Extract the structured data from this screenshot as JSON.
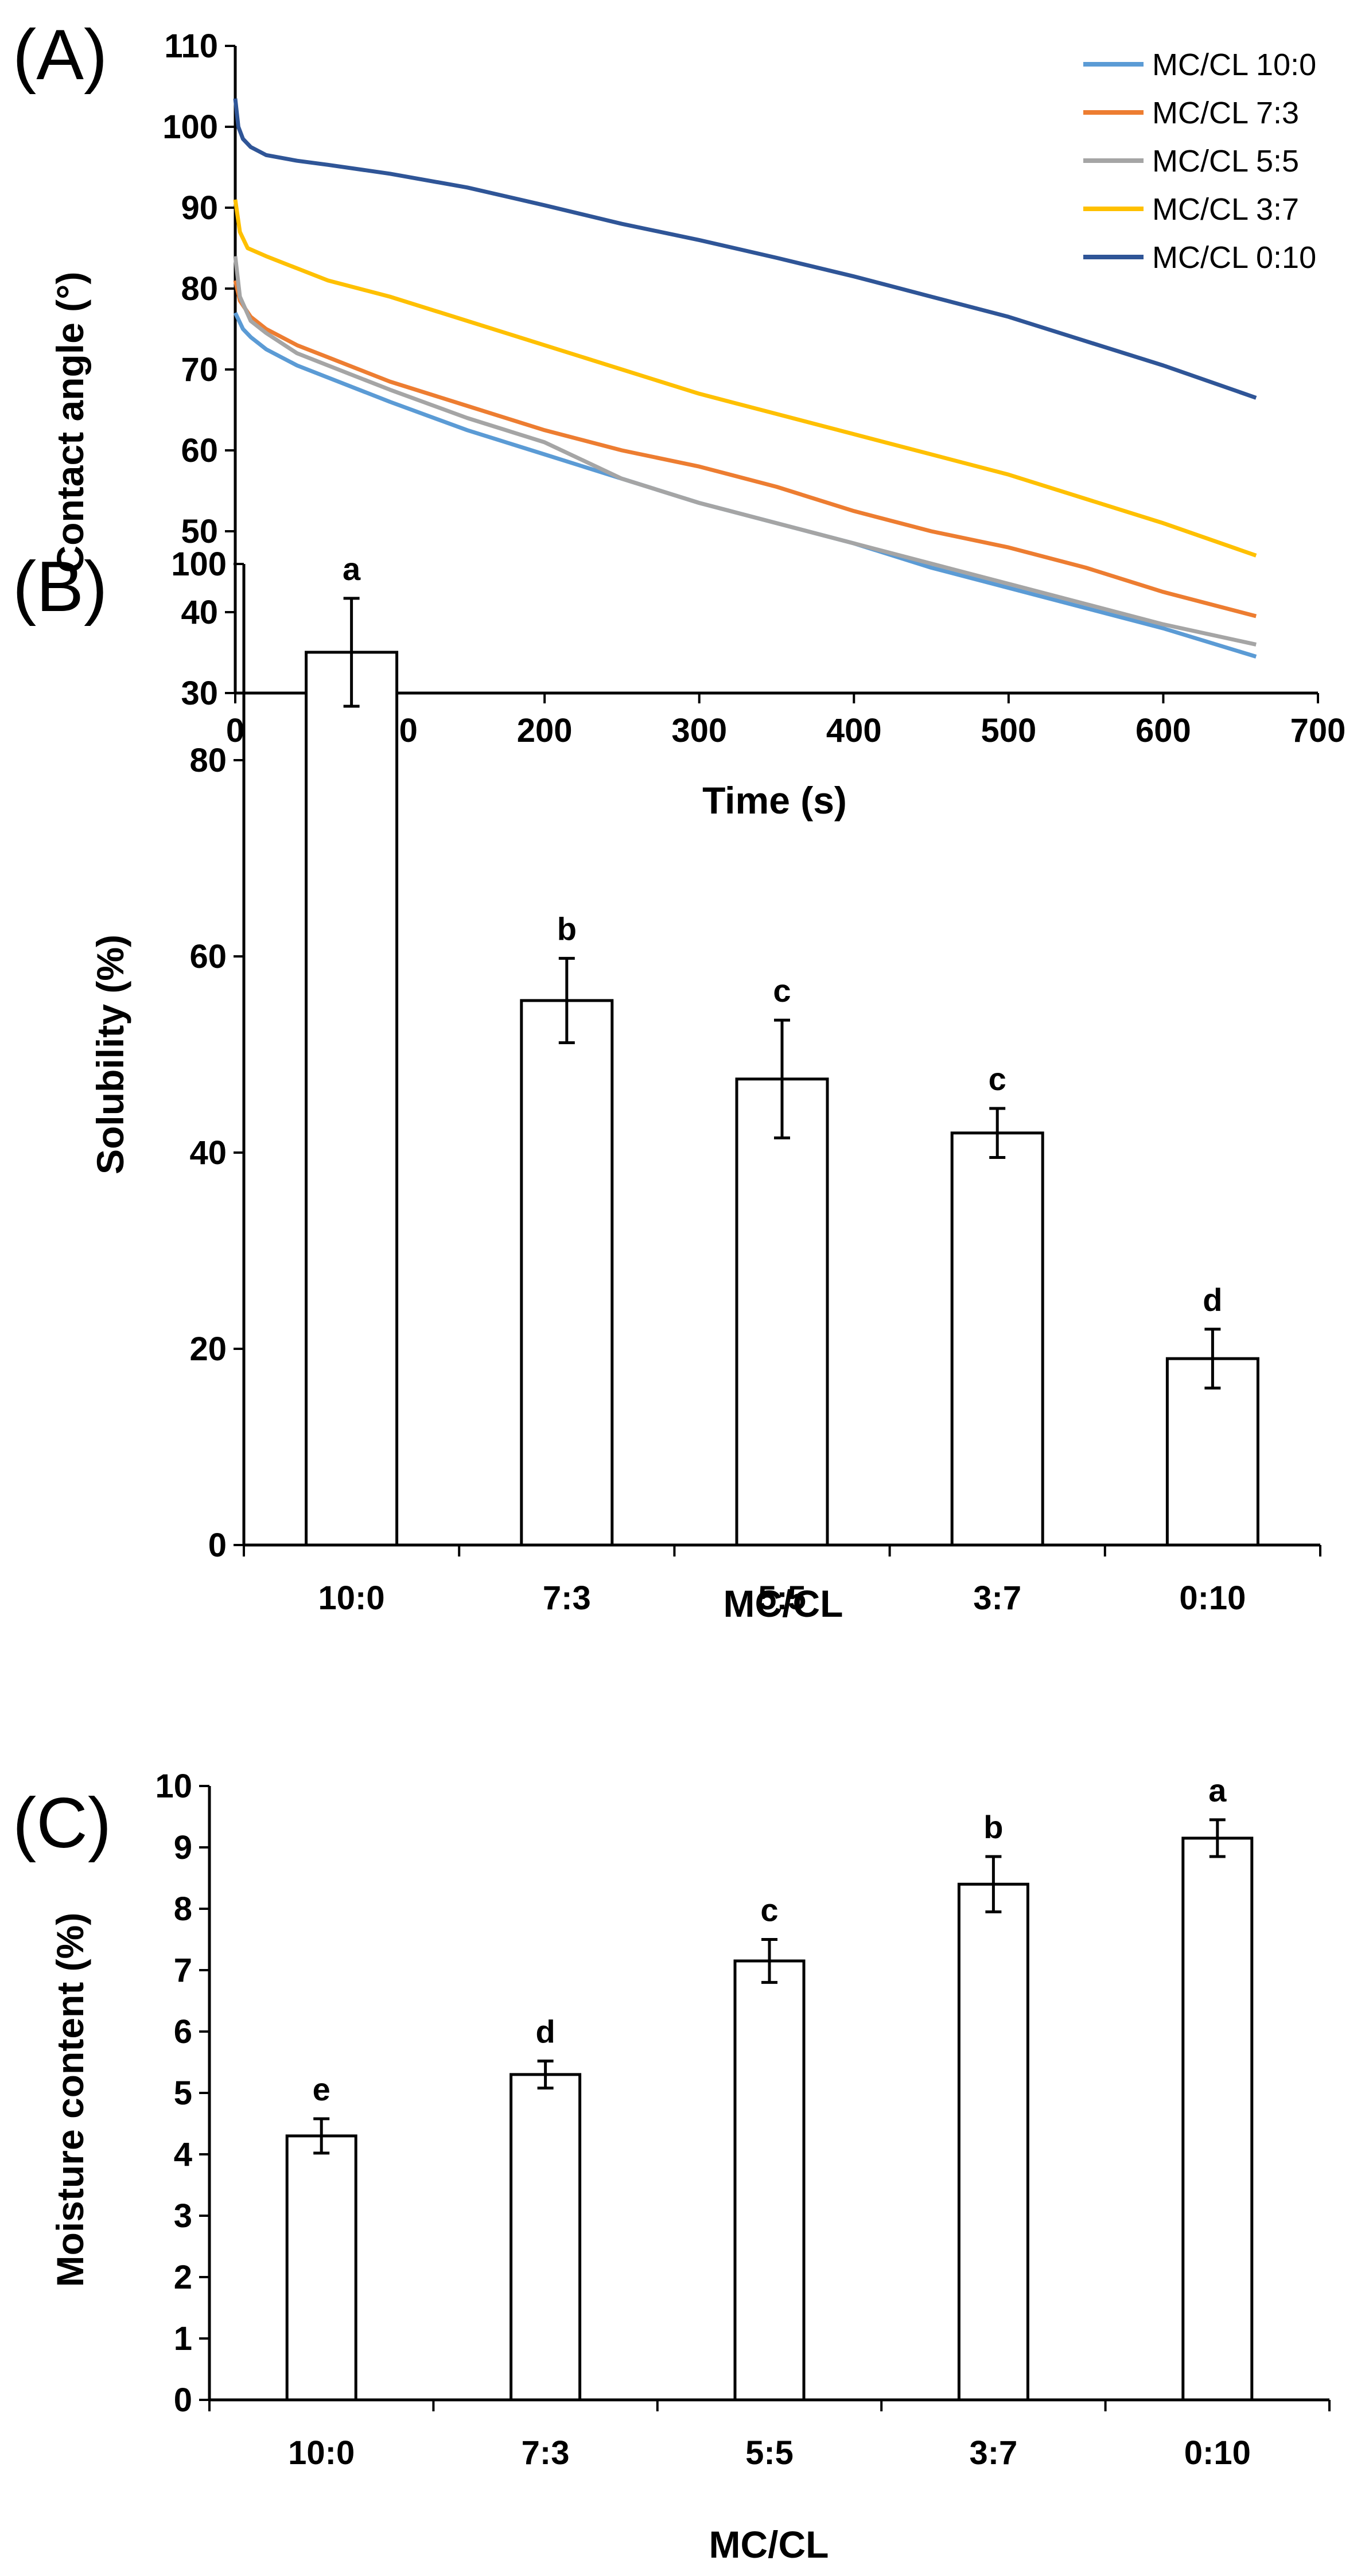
{
  "chart_data": [
    {
      "panel": "(A)",
      "type": "line",
      "xlabel": "Time (s)",
      "ylabel": "Contact angle (°)",
      "xlim": [
        0,
        700
      ],
      "ylim": [
        30,
        110
      ],
      "xticks": [
        0,
        100,
        200,
        300,
        400,
        500,
        600,
        700
      ],
      "yticks": [
        30,
        40,
        50,
        60,
        70,
        80,
        90,
        100,
        110
      ],
      "grid": false,
      "legend": "top-right",
      "series": [
        {
          "name": "MC/CL 10:0",
          "color": "#5B9BD5",
          "x": [
            0,
            5,
            10,
            20,
            40,
            60,
            100,
            150,
            200,
            250,
            300,
            350,
            400,
            450,
            500,
            550,
            600,
            660
          ],
          "y": [
            77,
            75,
            74,
            72.5,
            70.5,
            69,
            66,
            62.5,
            59.5,
            56.5,
            53.5,
            51,
            48.5,
            45.5,
            43,
            40.5,
            38,
            34.5
          ]
        },
        {
          "name": "MC/CL 7:3",
          "color": "#ED7D31",
          "x": [
            0,
            3,
            10,
            20,
            40,
            60,
            100,
            150,
            200,
            250,
            300,
            350,
            400,
            450,
            500,
            550,
            600,
            660
          ],
          "y": [
            81,
            78.5,
            76.5,
            75,
            73,
            71.5,
            68.5,
            65.5,
            62.5,
            60,
            58,
            55.5,
            52.5,
            50,
            48,
            45.5,
            42.5,
            39.5
          ]
        },
        {
          "name": "MC/CL 5:5",
          "color": "#A5A5A5",
          "x": [
            0,
            3,
            10,
            20,
            40,
            60,
            100,
            150,
            200,
            250,
            300,
            350,
            400,
            450,
            500,
            550,
            600,
            660
          ],
          "y": [
            84,
            79,
            76,
            74.5,
            72,
            70.5,
            67.5,
            64,
            61,
            56.5,
            53.5,
            51,
            48.5,
            46,
            43.5,
            41,
            38.5,
            36
          ]
        },
        {
          "name": "MC/CL 3:7",
          "color": "#FFC000",
          "x": [
            0,
            3,
            8,
            20,
            40,
            60,
            100,
            150,
            200,
            250,
            300,
            350,
            400,
            450,
            500,
            550,
            600,
            660
          ],
          "y": [
            91,
            87,
            85,
            84,
            82.5,
            81,
            79,
            76,
            73,
            70,
            67,
            64.5,
            62,
            59.5,
            57,
            54,
            51,
            47
          ]
        },
        {
          "name": "MC/CL 0:10",
          "color": "#2F5597",
          "x": [
            0,
            2,
            5,
            10,
            20,
            40,
            60,
            100,
            150,
            200,
            250,
            300,
            350,
            400,
            450,
            500,
            550,
            600,
            660
          ],
          "y": [
            103.5,
            100,
            98.5,
            97.5,
            96.5,
            95.8,
            95.3,
            94.2,
            92.5,
            90.3,
            88,
            86,
            83.8,
            81.5,
            79,
            76.5,
            73.5,
            70.5,
            66.5
          ]
        }
      ]
    },
    {
      "panel": "(B)",
      "type": "bar",
      "xlabel": "MC/CL",
      "ylabel": "Solubility  (%)",
      "ylim": [
        0,
        100
      ],
      "yticks": [
        0,
        20,
        40,
        60,
        80,
        100
      ],
      "categories": [
        "10:0",
        "7:3",
        "5:5",
        "3:7",
        "0:10"
      ],
      "values": [
        91,
        55.5,
        47.5,
        42,
        19
      ],
      "errors": [
        5.5,
        4.3,
        6,
        2.5,
        3
      ],
      "letters": [
        "a",
        "b",
        "c",
        "c",
        "d"
      ]
    },
    {
      "panel": "(C)",
      "type": "bar",
      "xlabel": "MC/CL",
      "ylabel": "Moisture content (%)",
      "ylim": [
        0,
        10
      ],
      "yticks": [
        0,
        1,
        2,
        3,
        4,
        5,
        6,
        7,
        8,
        9,
        10
      ],
      "categories": [
        "10:0",
        "7:3",
        "5:5",
        "3:7",
        "0:10"
      ],
      "values": [
        4.3,
        5.3,
        7.15,
        8.4,
        9.15
      ],
      "errors": [
        0.28,
        0.22,
        0.35,
        0.45,
        0.3
      ],
      "letters": [
        "e",
        "d",
        "c",
        "b",
        "a"
      ]
    }
  ]
}
